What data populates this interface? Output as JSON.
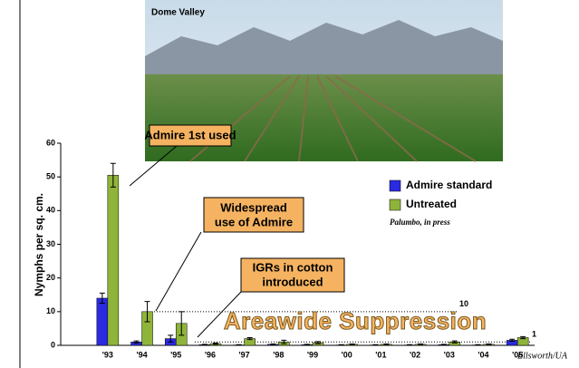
{
  "photo_caption": "Dome Valley",
  "chart_data": {
    "type": "bar",
    "y_label": "Nymphs per sq. cm.",
    "categories": [
      "'93",
      "'94",
      "'95",
      "'96",
      "'97",
      "'98",
      "'99",
      "'00",
      "'01",
      "'02",
      "'03",
      "'04",
      "'05"
    ],
    "series": [
      {
        "name": "Admire standard",
        "color": "#2a2ae0",
        "values": [
          14,
          1,
          2,
          0.2,
          0.1,
          0.3,
          0.2,
          0.1,
          0.1,
          0.1,
          0.2,
          0.1,
          1.5
        ],
        "errors": [
          1.5,
          0.3,
          1,
          0.1,
          0.1,
          0.1,
          0.1,
          0.1,
          0.1,
          0.1,
          0.1,
          0.1,
          0.3
        ]
      },
      {
        "name": "Untreated",
        "color": "#8fb43a",
        "values": [
          50.5,
          10,
          6.5,
          0.5,
          2,
          1,
          0.8,
          0.3,
          0.3,
          0.3,
          1,
          0.3,
          2.3
        ],
        "errors": [
          3.5,
          3,
          3.5,
          0.2,
          0.3,
          0.5,
          0.3,
          0.1,
          0.1,
          0.1,
          0.3,
          0.1,
          0.3
        ]
      }
    ],
    "ylim": [
      0,
      60
    ],
    "yticks": [
      0,
      10,
      20,
      30,
      40,
      50,
      60
    ],
    "reference_lines": [
      10,
      1
    ],
    "annotations": [
      [
        "Admire 1st used"
      ],
      [
        "Widespread",
        "use of Admire"
      ],
      [
        "IGRs in cotton",
        "introduced"
      ]
    ],
    "banner": "Areawide Suppression",
    "source": "Palumbo, in press",
    "credit": "Ellsworth/UA"
  }
}
